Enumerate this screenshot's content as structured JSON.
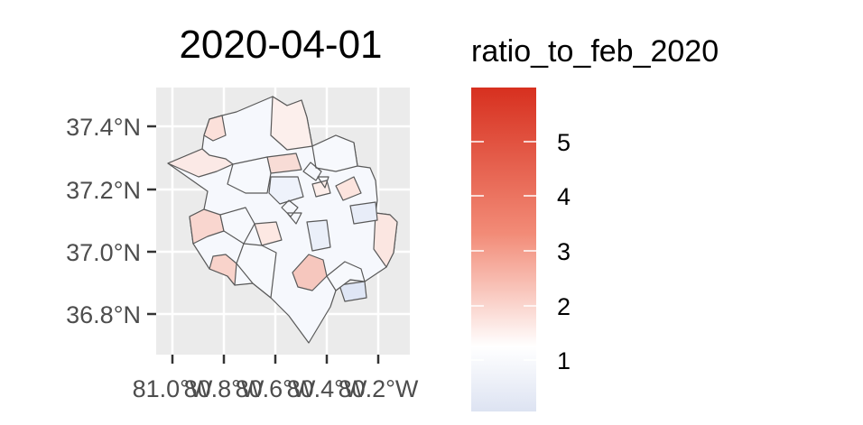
{
  "map": {
    "title": "2020-04-01",
    "y_ticks": [
      "37.4°N",
      "37.2°N",
      "37.0°N",
      "36.8°N"
    ],
    "x_ticks": [
      "81.0°W",
      "80.8°W",
      "80.6°W",
      "80.4°W",
      "80.2°W"
    ],
    "panel_color": "#ebebeb",
    "grid_color": "#ffffff",
    "border_color": "#595959"
  },
  "legend": {
    "title": "ratio_to_feb_2020",
    "ticks": [
      "5",
      "4",
      "3",
      "2",
      "1"
    ],
    "colors": {
      "high": "#d7301f",
      "mid": "#ffffff",
      "low": "#dde3f2"
    }
  }
}
